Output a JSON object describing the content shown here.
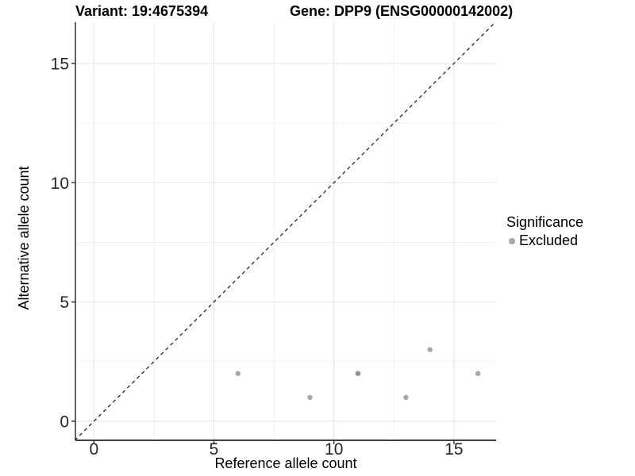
{
  "chart_data": {
    "type": "scatter",
    "title_variant": "Variant: 19:4675394",
    "title_gene": "Gene: DPP9 (ENSG00000142002)",
    "xlabel": "Reference allele count",
    "ylabel": "Alternative allele count",
    "xlim": [
      -0.8,
      16.75
    ],
    "ylim": [
      -0.8,
      16.7
    ],
    "x_ticks": [
      0,
      5,
      10,
      15
    ],
    "y_ticks": [
      0,
      5,
      10,
      15
    ],
    "x_minor_gridlines": [
      2.5,
      7.5,
      12.5
    ],
    "y_minor_gridlines": [
      2.5,
      7.5,
      12.5
    ],
    "grid": true,
    "identity_line": {
      "slope": 1,
      "intercept": 0,
      "style": "dashed",
      "color": "#262626"
    },
    "series": [
      {
        "name": "Excluded",
        "color": "#8a8a8a",
        "points": [
          {
            "x": 6,
            "y": 2
          },
          {
            "x": 9,
            "y": 1
          },
          {
            "x": 11,
            "y": 2
          },
          {
            "x": 11,
            "y": 2
          },
          {
            "x": 13,
            "y": 1
          },
          {
            "x": 14,
            "y": 3
          },
          {
            "x": 16,
            "y": 2
          }
        ]
      }
    ],
    "legend": {
      "position": "right",
      "title": "Significance",
      "items": [
        {
          "label": "Excluded",
          "color": "#8a8a8a"
        }
      ]
    },
    "colors": {
      "excluded_point": "#a7a7a7",
      "grid_major": "#e4e4e4",
      "grid_minor": "#f0f0f0",
      "axis_line": "#404040",
      "text": "#000000"
    }
  }
}
